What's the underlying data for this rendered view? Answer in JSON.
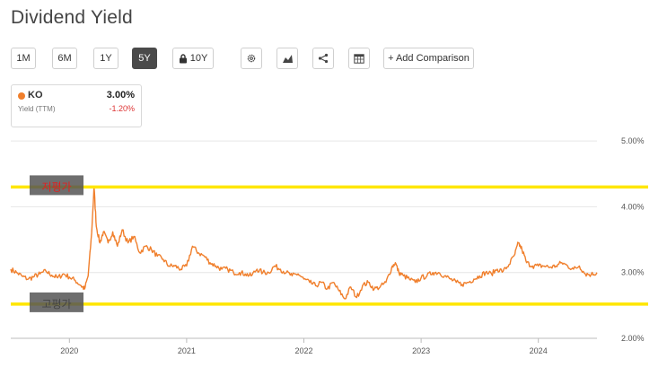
{
  "title": "Dividend Yield",
  "toolbar": {
    "buttons": [
      {
        "id": "1m",
        "label": "1M"
      },
      {
        "id": "6m",
        "label": "6M"
      },
      {
        "id": "1y",
        "label": "1Y"
      },
      {
        "id": "5y",
        "label": "5Y",
        "active": true
      },
      {
        "id": "10y",
        "label": "10Y",
        "locked": true
      }
    ],
    "icons": [
      "gear-icon",
      "mountain-chart-icon",
      "share-icon",
      "table-icon"
    ],
    "add_comparison": "+ Add Comparison"
  },
  "legend": {
    "ticker": "KO",
    "subtitle": "Yield (TTM)",
    "value": "3.00%",
    "change": "-1.20%",
    "color": "#f07f2c"
  },
  "chart_data": {
    "type": "line",
    "y_tick_labels": [
      "5.00%",
      "4.00%",
      "3.00%",
      "2.00%"
    ],
    "y_ticks": [
      5,
      4,
      3,
      2
    ],
    "ylim": [
      2,
      5.3
    ],
    "x_tick_labels": [
      "2020",
      "2021",
      "2022",
      "2023",
      "2024"
    ],
    "x_ticks": [
      2020,
      2021,
      2022,
      2023,
      2024
    ],
    "xlim": [
      2019.5,
      2024.5
    ],
    "grid": true,
    "series": [
      {
        "color": "#f07f2c",
        "points": [
          [
            2019.5,
            3.05
          ],
          [
            2019.55,
            3.0
          ],
          [
            2019.6,
            2.94
          ],
          [
            2019.65,
            2.9
          ],
          [
            2019.7,
            2.94
          ],
          [
            2019.75,
            2.98
          ],
          [
            2019.8,
            3.02
          ],
          [
            2019.85,
            2.96
          ],
          [
            2019.9,
            2.92
          ],
          [
            2019.95,
            2.98
          ],
          [
            2020.0,
            2.93
          ],
          [
            2020.05,
            2.88
          ],
          [
            2020.1,
            2.8
          ],
          [
            2020.13,
            2.75
          ],
          [
            2020.16,
            2.95
          ],
          [
            2020.19,
            3.6
          ],
          [
            2020.21,
            4.3
          ],
          [
            2020.23,
            3.7
          ],
          [
            2020.26,
            3.45
          ],
          [
            2020.29,
            3.62
          ],
          [
            2020.33,
            3.45
          ],
          [
            2020.37,
            3.62
          ],
          [
            2020.41,
            3.4
          ],
          [
            2020.45,
            3.65
          ],
          [
            2020.5,
            3.45
          ],
          [
            2020.55,
            3.55
          ],
          [
            2020.6,
            3.3
          ],
          [
            2020.65,
            3.4
          ],
          [
            2020.7,
            3.35
          ],
          [
            2020.75,
            3.25
          ],
          [
            2020.8,
            3.2
          ],
          [
            2020.85,
            3.1
          ],
          [
            2020.9,
            3.1
          ],
          [
            2020.95,
            3.05
          ],
          [
            2021.0,
            3.1
          ],
          [
            2021.05,
            3.4
          ],
          [
            2021.1,
            3.3
          ],
          [
            2021.15,
            3.25
          ],
          [
            2021.2,
            3.15
          ],
          [
            2021.25,
            3.1
          ],
          [
            2021.3,
            3.05
          ],
          [
            2021.35,
            3.05
          ],
          [
            2021.4,
            3.0
          ],
          [
            2021.45,
            3.0
          ],
          [
            2021.5,
            2.98
          ],
          [
            2021.55,
            2.95
          ],
          [
            2021.6,
            3.05
          ],
          [
            2021.65,
            3.0
          ],
          [
            2021.7,
            3.0
          ],
          [
            2021.75,
            3.1
          ],
          [
            2021.8,
            3.05
          ],
          [
            2021.85,
            3.0
          ],
          [
            2021.9,
            2.95
          ],
          [
            2021.95,
            2.98
          ],
          [
            2022.0,
            2.9
          ],
          [
            2022.05,
            2.85
          ],
          [
            2022.1,
            2.8
          ],
          [
            2022.15,
            2.85
          ],
          [
            2022.2,
            2.75
          ],
          [
            2022.25,
            2.85
          ],
          [
            2022.3,
            2.72
          ],
          [
            2022.35,
            2.6
          ],
          [
            2022.4,
            2.78
          ],
          [
            2022.45,
            2.62
          ],
          [
            2022.5,
            2.8
          ],
          [
            2022.55,
            2.85
          ],
          [
            2022.6,
            2.75
          ],
          [
            2022.65,
            2.78
          ],
          [
            2022.7,
            2.85
          ],
          [
            2022.75,
            3.08
          ],
          [
            2022.78,
            3.15
          ],
          [
            2022.81,
            3.0
          ],
          [
            2022.85,
            2.95
          ],
          [
            2022.9,
            2.9
          ],
          [
            2022.95,
            2.85
          ],
          [
            2023.0,
            2.92
          ],
          [
            2023.05,
            2.95
          ],
          [
            2023.1,
            3.0
          ],
          [
            2023.15,
            3.0
          ],
          [
            2023.2,
            2.95
          ],
          [
            2023.25,
            2.9
          ],
          [
            2023.3,
            2.85
          ],
          [
            2023.35,
            2.82
          ],
          [
            2023.4,
            2.85
          ],
          [
            2023.45,
            2.9
          ],
          [
            2023.5,
            2.95
          ],
          [
            2023.55,
            3.0
          ],
          [
            2023.6,
            2.98
          ],
          [
            2023.65,
            3.05
          ],
          [
            2023.7,
            3.02
          ],
          [
            2023.75,
            3.12
          ],
          [
            2023.8,
            3.28
          ],
          [
            2023.83,
            3.45
          ],
          [
            2023.86,
            3.35
          ],
          [
            2023.9,
            3.15
          ],
          [
            2023.95,
            3.1
          ],
          [
            2024.0,
            3.1
          ],
          [
            2024.05,
            3.1
          ],
          [
            2024.1,
            3.08
          ],
          [
            2024.15,
            3.1
          ],
          [
            2024.2,
            3.15
          ],
          [
            2024.25,
            3.1
          ],
          [
            2024.3,
            3.05
          ],
          [
            2024.35,
            3.1
          ],
          [
            2024.4,
            2.98
          ],
          [
            2024.45,
            2.97
          ],
          [
            2024.5,
            3.0
          ]
        ]
      }
    ],
    "annotations": [
      {
        "label": "저평가",
        "y": 4.3,
        "line_color": "#ffe600",
        "text_color": "#e02020",
        "box_color": "#555555"
      },
      {
        "label": "고평가",
        "y": 2.52,
        "line_color": "#ffe600",
        "text_color": "#444444",
        "box_color": "#555555"
      }
    ]
  }
}
